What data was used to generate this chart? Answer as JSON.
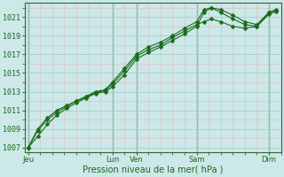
{
  "xlabel": "Pression niveau de la mer( hPa )",
  "bg_color": "#cce8e8",
  "plot_bg_color": "#cce8e8",
  "grid_major_color": "#aacccc",
  "grid_minor_color": "#ddbbbb",
  "line_color": "#1a6b1a",
  "vline_color": "#336633",
  "ylim": [
    1006.5,
    1022.5
  ],
  "xlim": [
    -0.15,
    10.5
  ],
  "yticks": [
    1007,
    1009,
    1011,
    1013,
    1015,
    1017,
    1019,
    1021
  ],
  "xtick_labels": [
    "Jeu",
    "Lun",
    "Ven",
    "Sam",
    "Dim"
  ],
  "xtick_pos": [
    0.0,
    3.5,
    4.5,
    7.0,
    10.0
  ],
  "vline_pos": [
    0.0,
    3.5,
    4.5,
    7.0,
    10.0
  ],
  "line1_x": [
    0.0,
    0.4,
    0.8,
    1.2,
    1.6,
    2.0,
    2.4,
    2.8,
    3.2,
    3.5,
    4.0,
    4.5,
    5.0,
    5.5,
    6.0,
    6.5,
    7.0,
    7.3,
    7.6,
    8.0,
    8.5,
    9.0,
    9.5,
    10.0,
    10.3
  ],
  "line1_y": [
    1007.0,
    1008.2,
    1009.5,
    1010.5,
    1011.2,
    1011.8,
    1012.3,
    1012.8,
    1013.0,
    1013.5,
    1014.8,
    1016.5,
    1017.2,
    1017.8,
    1018.5,
    1019.2,
    1020.0,
    1021.5,
    1022.0,
    1021.8,
    1021.2,
    1020.5,
    1020.2,
    1021.5,
    1021.8
  ],
  "line2_x": [
    0.0,
    0.4,
    0.8,
    1.2,
    1.6,
    2.0,
    2.4,
    2.8,
    3.2,
    3.5,
    4.0,
    4.5,
    5.0,
    5.5,
    6.0,
    6.5,
    7.0,
    7.3,
    7.6,
    8.0,
    8.5,
    9.0,
    9.5,
    10.0,
    10.3
  ],
  "line2_y": [
    1007.0,
    1008.8,
    1010.0,
    1010.8,
    1011.4,
    1012.0,
    1012.4,
    1012.9,
    1013.1,
    1013.8,
    1015.2,
    1016.8,
    1017.5,
    1018.0,
    1018.8,
    1019.5,
    1020.2,
    1020.5,
    1020.8,
    1020.5,
    1020.0,
    1019.8,
    1020.0,
    1021.3,
    1021.6
  ],
  "line3_x": [
    0.0,
    0.4,
    0.8,
    1.2,
    1.6,
    2.0,
    2.4,
    2.8,
    3.2,
    3.5,
    4.0,
    4.5,
    5.0,
    5.5,
    6.0,
    6.5,
    7.0,
    7.3,
    7.6,
    8.0,
    8.5,
    9.0,
    9.5,
    10.0,
    10.3
  ],
  "line3_y": [
    1007.0,
    1009.0,
    1010.2,
    1011.0,
    1011.5,
    1012.0,
    1012.5,
    1013.0,
    1013.2,
    1014.0,
    1015.5,
    1017.0,
    1017.8,
    1018.3,
    1019.0,
    1019.8,
    1020.5,
    1021.8,
    1022.0,
    1021.5,
    1020.8,
    1020.2,
    1020.0,
    1021.5,
    1021.7
  ],
  "marker": "D",
  "marker_size": 2.5,
  "linewidth": 0.8,
  "xlabel_fontsize": 7,
  "tick_fontsize": 6,
  "tick_color": "#1a6b1a"
}
